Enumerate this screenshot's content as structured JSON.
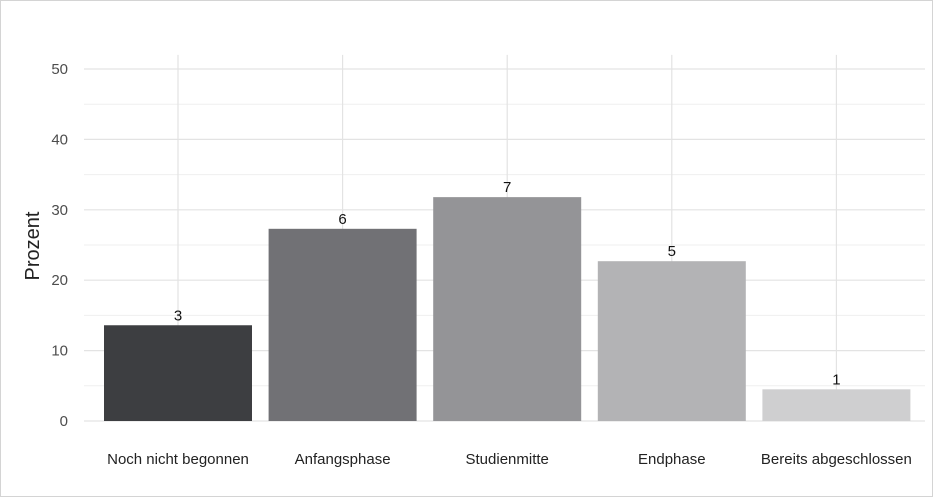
{
  "chart_data": {
    "type": "bar",
    "categories": [
      "Noch nicht begonnen",
      "Anfangsphase",
      "Studienmitte",
      "Endphase",
      "Bereits abgeschlossen"
    ],
    "values": [
      13.6,
      27.3,
      31.8,
      22.7,
      4.5
    ],
    "data_labels": [
      "3",
      "6",
      "7",
      "5",
      "1"
    ],
    "bar_colors": [
      "#3d3e41",
      "#717175",
      "#949497",
      "#b3b3b5",
      "#cfcfd0"
    ],
    "xlabel": "",
    "ylabel": "Prozent",
    "ylim": [
      0,
      52
    ],
    "yticks": [
      "0",
      "10",
      "20",
      "30",
      "40",
      "50"
    ],
    "grid": true,
    "legend": "none"
  }
}
